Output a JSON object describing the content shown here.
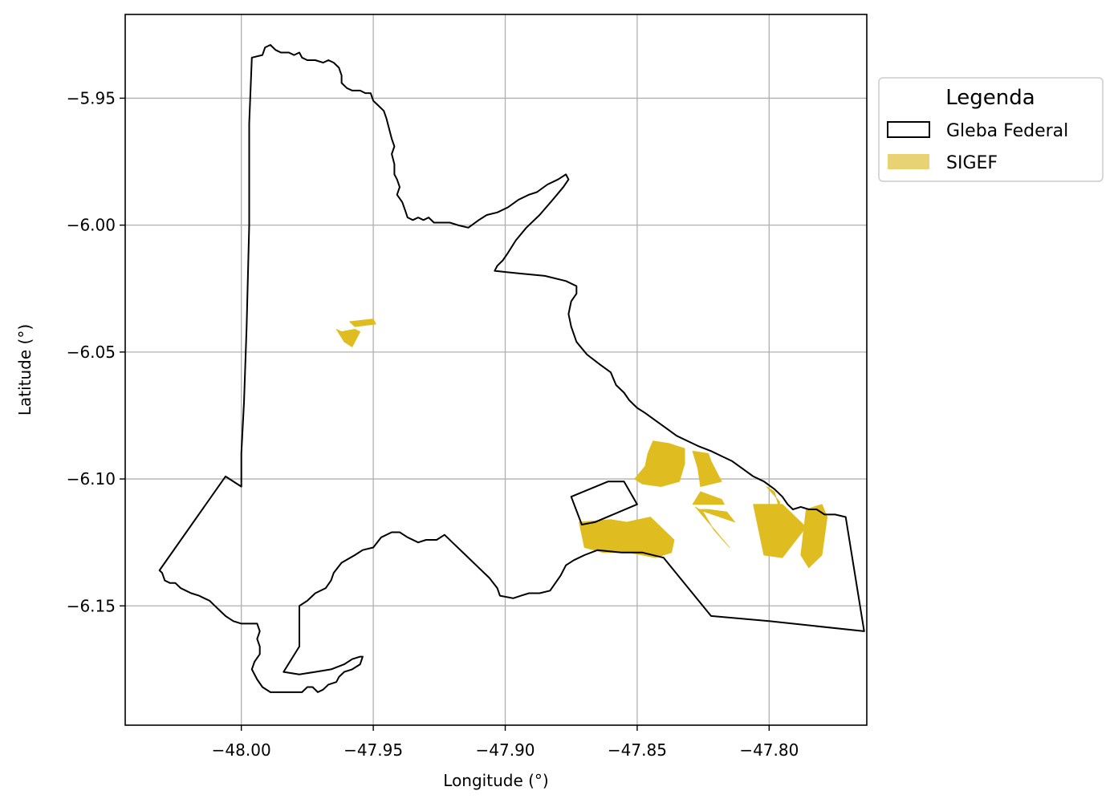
{
  "chart_data": {
    "type": "map",
    "xlabel": "Longitude (°)",
    "ylabel": "Latitude (°)",
    "x_ticks": [
      "−48.00",
      "−47.95",
      "−47.90",
      "−47.85",
      "−47.80"
    ],
    "y_ticks": [
      "−5.95",
      "−6.00",
      "−6.05",
      "−6.10",
      "−6.15"
    ],
    "xlim": [
      -48.044,
      -47.763
    ],
    "ylim": [
      -6.197,
      -5.917
    ],
    "grid": true,
    "legend": {
      "title": "Legenda",
      "placement": "outside-right-top",
      "entries": [
        {
          "label": "Gleba Federal",
          "style": "outline",
          "color": "#000000"
        },
        {
          "label": "SIGEF",
          "style": "fill",
          "color": "#e8d273"
        }
      ]
    },
    "colors": {
      "gleba_edge": "#000000",
      "sigef_fill": "#dfbd21",
      "grid": "#b0b0b0"
    },
    "layers": {
      "gleba_federal": [
        [
          [
            -47.996,
            -5.934
          ],
          [
            -47.992,
            -5.933
          ],
          [
            -47.991,
            -5.93
          ],
          [
            -47.989,
            -5.929
          ],
          [
            -47.987,
            -5.931
          ],
          [
            -47.985,
            -5.932
          ],
          [
            -47.982,
            -5.932
          ],
          [
            -47.98,
            -5.933
          ],
          [
            -47.978,
            -5.932
          ],
          [
            -47.977,
            -5.934
          ],
          [
            -47.975,
            -5.935
          ],
          [
            -47.972,
            -5.935
          ],
          [
            -47.969,
            -5.936
          ],
          [
            -47.967,
            -5.935
          ],
          [
            -47.965,
            -5.936
          ],
          [
            -47.963,
            -5.938
          ],
          [
            -47.962,
            -5.941
          ],
          [
            -47.962,
            -5.944
          ],
          [
            -47.96,
            -5.946
          ],
          [
            -47.958,
            -5.947
          ],
          [
            -47.955,
            -5.947
          ],
          [
            -47.953,
            -5.948
          ],
          [
            -47.951,
            -5.948
          ],
          [
            -47.95,
            -5.951
          ],
          [
            -47.948,
            -5.953
          ],
          [
            -47.946,
            -5.955
          ],
          [
            -47.945,
            -5.958
          ],
          [
            -47.944,
            -5.962
          ],
          [
            -47.943,
            -5.966
          ],
          [
            -47.942,
            -5.969
          ],
          [
            -47.943,
            -5.972
          ],
          [
            -47.942,
            -5.976
          ],
          [
            -47.942,
            -5.98
          ],
          [
            -47.941,
            -5.982
          ],
          [
            -47.94,
            -5.985
          ],
          [
            -47.941,
            -5.988
          ],
          [
            -47.939,
            -5.991
          ],
          [
            -47.938,
            -5.994
          ],
          [
            -47.937,
            -5.997
          ],
          [
            -47.935,
            -5.998
          ],
          [
            -47.933,
            -5.997
          ],
          [
            -47.931,
            -5.998
          ],
          [
            -47.929,
            -5.997
          ],
          [
            -47.927,
            -5.999
          ],
          [
            -47.924,
            -5.999
          ],
          [
            -47.921,
            -5.999
          ],
          [
            -47.918,
            -6.0
          ],
          [
            -47.914,
            -6.001
          ],
          [
            -47.91,
            -5.998
          ],
          [
            -47.907,
            -5.996
          ],
          [
            -47.903,
            -5.995
          ],
          [
            -47.899,
            -5.993
          ],
          [
            -47.895,
            -5.99
          ],
          [
            -47.891,
            -5.988
          ],
          [
            -47.888,
            -5.987
          ],
          [
            -47.884,
            -5.984
          ],
          [
            -47.88,
            -5.982
          ],
          [
            -47.877,
            -5.98
          ],
          [
            -47.876,
            -5.982
          ],
          [
            -47.878,
            -5.985
          ],
          [
            -47.882,
            -5.99
          ],
          [
            -47.887,
            -5.996
          ],
          [
            -47.892,
            -6.001
          ],
          [
            -47.896,
            -6.006
          ],
          [
            -47.899,
            -6.011
          ],
          [
            -47.901,
            -6.014
          ],
          [
            -47.903,
            -6.016
          ],
          [
            -47.904,
            -6.018
          ],
          [
            -47.895,
            -6.019
          ],
          [
            -47.885,
            -6.02
          ],
          [
            -47.877,
            -6.022
          ],
          [
            -47.873,
            -6.024
          ],
          [
            -47.873,
            -6.027
          ],
          [
            -47.875,
            -6.03
          ],
          [
            -47.876,
            -6.035
          ],
          [
            -47.875,
            -6.04
          ],
          [
            -47.873,
            -6.046
          ],
          [
            -47.869,
            -6.051
          ],
          [
            -47.864,
            -6.055
          ],
          [
            -47.86,
            -6.058
          ],
          [
            -47.858,
            -6.063
          ],
          [
            -47.855,
            -6.066
          ],
          [
            -47.853,
            -6.069
          ],
          [
            -47.85,
            -6.072
          ],
          [
            -47.847,
            -6.074
          ],
          [
            -47.843,
            -6.077
          ],
          [
            -47.839,
            -6.08
          ],
          [
            -47.835,
            -6.083
          ],
          [
            -47.831,
            -6.085
          ],
          [
            -47.827,
            -6.087
          ],
          [
            -47.822,
            -6.089
          ],
          [
            -47.818,
            -6.091
          ],
          [
            -47.814,
            -6.093
          ],
          [
            -47.81,
            -6.096
          ],
          [
            -47.806,
            -6.099
          ],
          [
            -47.802,
            -6.101
          ],
          [
            -47.798,
            -6.104
          ],
          [
            -47.795,
            -6.107
          ],
          [
            -47.793,
            -6.11
          ],
          [
            -47.791,
            -6.112
          ],
          [
            -47.788,
            -6.111
          ],
          [
            -47.785,
            -6.112
          ],
          [
            -47.782,
            -6.112
          ],
          [
            -47.779,
            -6.114
          ],
          [
            -47.775,
            -6.114
          ],
          [
            -47.771,
            -6.115
          ],
          [
            -47.764,
            -6.16
          ],
          [
            -47.8,
            -6.156
          ],
          [
            -47.822,
            -6.154
          ],
          [
            -47.84,
            -6.131
          ],
          [
            -47.848,
            -6.129
          ],
          [
            -47.856,
            -6.129
          ],
          [
            -47.865,
            -6.128
          ],
          [
            -47.87,
            -6.13
          ],
          [
            -47.874,
            -6.132
          ],
          [
            -47.877,
            -6.134
          ],
          [
            -47.879,
            -6.138
          ],
          [
            -47.881,
            -6.141
          ],
          [
            -47.883,
            -6.144
          ],
          [
            -47.887,
            -6.145
          ],
          [
            -47.891,
            -6.145
          ],
          [
            -47.894,
            -6.146
          ],
          [
            -47.897,
            -6.147
          ],
          [
            -47.902,
            -6.146
          ],
          [
            -47.903,
            -6.143
          ],
          [
            -47.906,
            -6.139
          ],
          [
            -47.91,
            -6.135
          ],
          [
            -47.915,
            -6.13
          ],
          [
            -47.92,
            -6.125
          ],
          [
            -47.923,
            -6.122
          ],
          [
            -47.926,
            -6.124
          ],
          [
            -47.93,
            -6.124
          ],
          [
            -47.933,
            -6.125
          ],
          [
            -47.937,
            -6.123
          ],
          [
            -47.94,
            -6.121
          ],
          [
            -47.943,
            -6.121
          ],
          [
            -47.947,
            -6.123
          ],
          [
            -47.95,
            -6.127
          ],
          [
            -47.954,
            -6.128
          ],
          [
            -47.957,
            -6.13
          ],
          [
            -47.962,
            -6.133
          ],
          [
            -47.965,
            -6.137
          ],
          [
            -47.966,
            -6.14
          ],
          [
            -47.968,
            -6.143
          ],
          [
            -47.972,
            -6.145
          ],
          [
            -47.975,
            -6.148
          ],
          [
            -47.978,
            -6.15
          ],
          [
            -47.978,
            -6.163
          ],
          [
            -47.978,
            -6.166
          ],
          [
            -47.984,
            -6.176
          ],
          [
            -47.978,
            -6.177
          ],
          [
            -47.972,
            -6.176
          ],
          [
            -47.966,
            -6.175
          ],
          [
            -47.961,
            -6.173
          ],
          [
            -47.958,
            -6.171
          ],
          [
            -47.955,
            -6.17
          ],
          [
            -47.954,
            -6.17
          ],
          [
            -47.955,
            -6.173
          ],
          [
            -47.958,
            -6.175
          ],
          [
            -47.961,
            -6.176
          ],
          [
            -47.963,
            -6.178
          ],
          [
            -47.964,
            -6.18
          ],
          [
            -47.967,
            -6.181
          ],
          [
            -47.969,
            -6.183
          ],
          [
            -47.971,
            -6.184
          ],
          [
            -47.973,
            -6.182
          ],
          [
            -47.975,
            -6.182
          ],
          [
            -47.977,
            -6.184
          ],
          [
            -47.98,
            -6.184
          ],
          [
            -47.983,
            -6.184
          ],
          [
            -47.986,
            -6.184
          ],
          [
            -47.989,
            -6.184
          ],
          [
            -47.992,
            -6.182
          ],
          [
            -47.994,
            -6.179
          ],
          [
            -47.996,
            -6.175
          ],
          [
            -47.995,
            -6.172
          ],
          [
            -47.993,
            -6.169
          ],
          [
            -47.993,
            -6.166
          ],
          [
            -47.994,
            -6.163
          ],
          [
            -47.993,
            -6.16
          ],
          [
            -47.994,
            -6.157
          ],
          [
            -47.997,
            -6.157
          ],
          [
            -48.0,
            -6.157
          ],
          [
            -48.003,
            -6.156
          ],
          [
            -48.006,
            -6.154
          ],
          [
            -48.008,
            -6.152
          ],
          [
            -48.01,
            -6.15
          ],
          [
            -48.012,
            -6.148
          ],
          [
            -48.014,
            -6.147
          ],
          [
            -48.016,
            -6.146
          ],
          [
            -48.019,
            -6.145
          ],
          [
            -48.021,
            -6.144
          ],
          [
            -48.023,
            -6.143
          ],
          [
            -48.025,
            -6.141
          ],
          [
            -48.027,
            -6.141
          ],
          [
            -48.029,
            -6.14
          ],
          [
            -48.03,
            -6.137
          ],
          [
            -48.031,
            -6.136
          ],
          [
            -48.006,
            -6.099
          ],
          [
            -48.0,
            -6.103
          ],
          [
            -48.0,
            -6.09
          ],
          [
            -47.999,
            -6.07
          ],
          [
            -47.998,
            -6.04
          ],
          [
            -47.997,
            -6.0
          ],
          [
            -47.997,
            -5.96
          ],
          [
            -47.996,
            -5.934
          ]
        ],
        [
          [
            -47.875,
            -6.107
          ],
          [
            -47.861,
            -6.101
          ],
          [
            -47.855,
            -6.101
          ],
          [
            -47.85,
            -6.11
          ],
          [
            -47.866,
            -6.117
          ],
          [
            -47.871,
            -6.118
          ],
          [
            -47.875,
            -6.107
          ]
        ]
      ],
      "sigef": [
        [
          [
            -47.962,
            -6.042
          ],
          [
            -47.957,
            -6.041
          ],
          [
            -47.955,
            -6.042
          ],
          [
            -47.958,
            -6.048
          ],
          [
            -47.961,
            -6.046
          ],
          [
            -47.964,
            -6.041
          ],
          [
            -47.962,
            -6.042
          ]
        ],
        [
          [
            -47.959,
            -6.038
          ],
          [
            -47.95,
            -6.037
          ],
          [
            -47.949,
            -6.039
          ],
          [
            -47.957,
            -6.04
          ],
          [
            -47.959,
            -6.038
          ]
        ],
        [
          [
            -47.844,
            -6.085
          ],
          [
            -47.838,
            -6.086
          ],
          [
            -47.832,
            -6.088
          ],
          [
            -47.832,
            -6.094
          ],
          [
            -47.834,
            -6.101
          ],
          [
            -47.841,
            -6.103
          ],
          [
            -47.848,
            -6.102
          ],
          [
            -47.851,
            -6.1
          ],
          [
            -47.847,
            -6.095
          ],
          [
            -47.846,
            -6.09
          ],
          [
            -47.844,
            -6.085
          ]
        ],
        [
          [
            -47.829,
            -6.089
          ],
          [
            -47.823,
            -6.09
          ],
          [
            -47.822,
            -6.093
          ],
          [
            -47.818,
            -6.101
          ],
          [
            -47.826,
            -6.103
          ],
          [
            -47.827,
            -6.096
          ],
          [
            -47.829,
            -6.089
          ]
        ],
        [
          [
            -47.826,
            -6.105
          ],
          [
            -47.818,
            -6.108
          ],
          [
            -47.817,
            -6.11
          ],
          [
            -47.829,
            -6.11
          ],
          [
            -47.826,
            -6.105
          ]
        ],
        [
          [
            -47.872,
            -6.117
          ],
          [
            -47.86,
            -6.116
          ],
          [
            -47.854,
            -6.117
          ],
          [
            -47.845,
            -6.115
          ],
          [
            -47.836,
            -6.124
          ],
          [
            -47.837,
            -6.129
          ],
          [
            -47.843,
            -6.131
          ],
          [
            -47.853,
            -6.129
          ],
          [
            -47.863,
            -6.129
          ],
          [
            -47.87,
            -6.127
          ],
          [
            -47.872,
            -6.117
          ]
        ],
        [
          [
            -47.823,
            -6.112
          ],
          [
            -47.816,
            -6.113
          ],
          [
            -47.813,
            -6.117
          ],
          [
            -47.827,
            -6.112
          ],
          [
            -47.823,
            -6.112
          ]
        ],
        [
          [
            -47.825,
            -6.113
          ],
          [
            -47.821,
            -6.12
          ],
          [
            -47.815,
            -6.127
          ],
          [
            -47.828,
            -6.111
          ],
          [
            -47.825,
            -6.113
          ]
        ],
        [
          [
            -47.806,
            -6.11
          ],
          [
            -47.804,
            -6.12
          ],
          [
            -47.802,
            -6.13
          ],
          [
            -47.795,
            -6.131
          ],
          [
            -47.789,
            -6.123
          ],
          [
            -47.786,
            -6.119
          ],
          [
            -47.795,
            -6.11
          ],
          [
            -47.806,
            -6.11
          ]
        ],
        [
          [
            -47.801,
            -6.103
          ],
          [
            -47.798,
            -6.105
          ],
          [
            -47.796,
            -6.112
          ],
          [
            -47.796,
            -6.109
          ],
          [
            -47.801,
            -6.103
          ]
        ],
        [
          [
            -47.786,
            -6.112
          ],
          [
            -47.78,
            -6.11
          ],
          [
            -47.778,
            -6.115
          ],
          [
            -47.78,
            -6.13
          ],
          [
            -47.785,
            -6.135
          ],
          [
            -47.788,
            -6.13
          ],
          [
            -47.786,
            -6.112
          ]
        ]
      ]
    }
  }
}
